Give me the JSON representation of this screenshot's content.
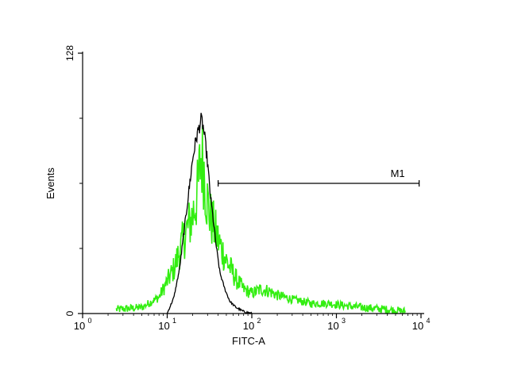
{
  "chart_data": {
    "type": "histogram",
    "title": "",
    "xlabel": "FITC-A",
    "ylabel": "Events",
    "x_scale": "log",
    "xlim": [
      1,
      10000
    ],
    "ylim": [
      0,
      128
    ],
    "x_ticks": [
      {
        "value": 1,
        "base": "10",
        "exp": "0"
      },
      {
        "value": 10,
        "base": "10",
        "exp": "1"
      },
      {
        "value": 100,
        "base": "10",
        "exp": "2"
      },
      {
        "value": 1000,
        "base": "10",
        "exp": "3"
      },
      {
        "value": 10000,
        "base": "10",
        "exp": "4"
      }
    ],
    "y_ticks": [
      {
        "value": 0,
        "label": "0"
      },
      {
        "value": 128,
        "label": "128"
      }
    ],
    "series": [
      {
        "color": "#000000",
        "role": "control outline",
        "x": [
          10,
          12,
          14,
          16,
          18,
          20,
          22,
          24,
          25,
          26,
          27,
          28,
          30,
          32,
          35,
          38,
          42,
          48,
          55,
          65,
          80,
          100
        ],
        "y": [
          0,
          8,
          22,
          42,
          60,
          76,
          86,
          92,
          95,
          94,
          90,
          85,
          74,
          60,
          46,
          33,
          20,
          12,
          6,
          3,
          1,
          0
        ]
      },
      {
        "color": "#33ee11",
        "role": "sample histogram",
        "x": [
          2.5,
          5,
          8,
          12,
          16,
          20,
          23,
          25,
          27,
          29,
          32,
          36,
          40,
          50,
          65,
          80,
          100,
          130,
          160,
          200,
          300,
          500,
          800,
          1200,
          2000,
          4000,
          6500
        ],
        "y": [
          2,
          3,
          8,
          22,
          38,
          48,
          60,
          78,
          72,
          58,
          48,
          42,
          36,
          26,
          17,
          12,
          10,
          12,
          11,
          9,
          7,
          5,
          5,
          4,
          3,
          2,
          1
        ]
      }
    ],
    "marker": {
      "label": "M1",
      "x_start": 40,
      "x_end": 9500,
      "y": 64
    }
  }
}
